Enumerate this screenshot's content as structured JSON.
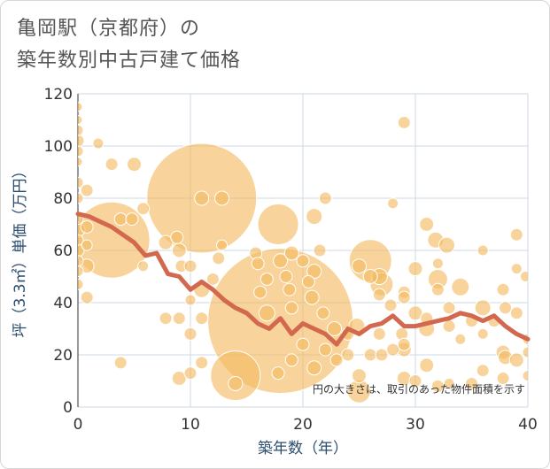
{
  "title_line1": "亀岡駅（京都府）の",
  "title_line2": "築年数別中古戸建て価格",
  "chart_data": {
    "type": "scatter",
    "title": "亀岡駅（京都府）の築年数別中古戸建て価格",
    "xlabel": "築年数（年）",
    "ylabel": "坪（3.3㎡）単価（万円）",
    "xlim": [
      0,
      40
    ],
    "ylim": [
      0,
      120
    ],
    "xticks": [
      0,
      10,
      20,
      30,
      40
    ],
    "yticks": [
      0,
      20,
      40,
      60,
      80,
      100,
      120
    ],
    "grid": true,
    "note": "円の大きさは、取引のあった物件面積を示す",
    "bubble_color": "#f3b95f",
    "line_color": "#d2694f",
    "bubbles": [
      {
        "x": 0,
        "y": 115,
        "s": 5
      },
      {
        "x": 0,
        "y": 110,
        "s": 5
      },
      {
        "x": 0,
        "y": 106,
        "s": 6
      },
      {
        "x": 0,
        "y": 102,
        "s": 7
      },
      {
        "x": 0,
        "y": 98,
        "s": 6
      },
      {
        "x": 0,
        "y": 94,
        "s": 5
      },
      {
        "x": 0,
        "y": 86,
        "s": 6
      },
      {
        "x": 0,
        "y": 80,
        "s": 6
      },
      {
        "x": 0,
        "y": 72,
        "s": 6
      },
      {
        "x": 0,
        "y": 68,
        "s": 8
      },
      {
        "x": 0,
        "y": 64,
        "s": 6
      },
      {
        "x": 0,
        "y": 60,
        "s": 7
      },
      {
        "x": 0,
        "y": 56,
        "s": 6
      },
      {
        "x": 0,
        "y": 52,
        "s": 6
      },
      {
        "x": 0,
        "y": 47,
        "s": 6
      },
      {
        "x": 0.8,
        "y": 83,
        "s": 7
      },
      {
        "x": 0.8,
        "y": 69,
        "s": 7
      },
      {
        "x": 0.8,
        "y": 62,
        "s": 6
      },
      {
        "x": 0.8,
        "y": 54,
        "s": 8
      },
      {
        "x": 0.8,
        "y": 42,
        "s": 7
      },
      {
        "x": 1.8,
        "y": 101,
        "s": 6
      },
      {
        "x": 3,
        "y": 93,
        "s": 7
      },
      {
        "x": 3,
        "y": 64,
        "s": 43
      },
      {
        "x": 3.8,
        "y": 72,
        "s": 7
      },
      {
        "x": 5,
        "y": 93,
        "s": 8
      },
      {
        "x": 4.8,
        "y": 72,
        "s": 7
      },
      {
        "x": 5.8,
        "y": 76,
        "s": 7
      },
      {
        "x": 5.8,
        "y": 54,
        "s": 6
      },
      {
        "x": 3.8,
        "y": 17,
        "s": 7
      },
      {
        "x": 7.8,
        "y": 63,
        "s": 8
      },
      {
        "x": 8.8,
        "y": 65,
        "s": 7
      },
      {
        "x": 9,
        "y": 60,
        "s": 8
      },
      {
        "x": 9.2,
        "y": 54,
        "s": 7
      },
      {
        "x": 10,
        "y": 54,
        "s": 7
      },
      {
        "x": 10,
        "y": 41,
        "s": 6
      },
      {
        "x": 7.8,
        "y": 34,
        "s": 7
      },
      {
        "x": 9,
        "y": 34,
        "s": 7
      },
      {
        "x": 10,
        "y": 28,
        "s": 7
      },
      {
        "x": 11,
        "y": 80,
        "s": 62
      },
      {
        "x": 11,
        "y": 80,
        "s": 8
      },
      {
        "x": 12.8,
        "y": 80,
        "s": 8
      },
      {
        "x": 12.8,
        "y": 62,
        "s": 6
      },
      {
        "x": 12.5,
        "y": 57,
        "s": 7
      },
      {
        "x": 11,
        "y": 45,
        "s": 9
      },
      {
        "x": 11,
        "y": 34,
        "s": 7
      },
      {
        "x": 9,
        "y": 11,
        "s": 8
      },
      {
        "x": 10,
        "y": 13,
        "s": 7
      },
      {
        "x": 11,
        "y": 17,
        "s": 7
      },
      {
        "x": 12,
        "y": 49,
        "s": 7
      },
      {
        "x": 14,
        "y": 12,
        "s": 28
      },
      {
        "x": 14,
        "y": 9,
        "s": 8
      },
      {
        "x": 15.8,
        "y": 59,
        "s": 7
      },
      {
        "x": 16,
        "y": 55,
        "s": 7
      },
      {
        "x": 16.8,
        "y": 49,
        "s": 7
      },
      {
        "x": 16.2,
        "y": 44,
        "s": 7
      },
      {
        "x": 16.8,
        "y": 36,
        "s": 9
      },
      {
        "x": 17.8,
        "y": 70,
        "s": 23
      },
      {
        "x": 18,
        "y": 56,
        "s": 8
      },
      {
        "x": 18.5,
        "y": 50,
        "s": 7
      },
      {
        "x": 18.8,
        "y": 45,
        "s": 7
      },
      {
        "x": 19,
        "y": 38,
        "s": 7
      },
      {
        "x": 18,
        "y": 33,
        "s": 82
      },
      {
        "x": 19,
        "y": 59,
        "s": 8
      },
      {
        "x": 20,
        "y": 56,
        "s": 7
      },
      {
        "x": 21,
        "y": 52,
        "s": 8
      },
      {
        "x": 20.5,
        "y": 48,
        "s": 7
      },
      {
        "x": 20.8,
        "y": 42,
        "s": 8
      },
      {
        "x": 21,
        "y": 73,
        "s": 9
      },
      {
        "x": 22,
        "y": 80,
        "s": 7
      },
      {
        "x": 21.5,
        "y": 60,
        "s": 7
      },
      {
        "x": 21.8,
        "y": 36,
        "s": 7
      },
      {
        "x": 22.8,
        "y": 30,
        "s": 8
      },
      {
        "x": 22,
        "y": 22,
        "s": 7
      },
      {
        "x": 21,
        "y": 15,
        "s": 8
      },
      {
        "x": 19,
        "y": 18,
        "s": 7
      },
      {
        "x": 17.8,
        "y": 13,
        "s": 7
      },
      {
        "x": 20,
        "y": 24,
        "s": 7
      },
      {
        "x": 23,
        "y": 18,
        "s": 7
      },
      {
        "x": 24,
        "y": 28,
        "s": 7
      },
      {
        "x": 24.8,
        "y": 31,
        "s": 9
      },
      {
        "x": 24,
        "y": 20,
        "s": 7
      },
      {
        "x": 25,
        "y": 12,
        "s": 8
      },
      {
        "x": 25,
        "y": 6,
        "s": 13
      },
      {
        "x": 26,
        "y": 56,
        "s": 24
      },
      {
        "x": 25,
        "y": 54,
        "s": 8
      },
      {
        "x": 26,
        "y": 50,
        "s": 8
      },
      {
        "x": 26.8,
        "y": 50,
        "s": 9
      },
      {
        "x": 27,
        "y": 47,
        "s": 13
      },
      {
        "x": 26.8,
        "y": 43,
        "s": 7
      },
      {
        "x": 27.8,
        "y": 39,
        "s": 7
      },
      {
        "x": 26.8,
        "y": 28,
        "s": 7
      },
      {
        "x": 26,
        "y": 20,
        "s": 7
      },
      {
        "x": 27,
        "y": 20,
        "s": 7
      },
      {
        "x": 28,
        "y": 22,
        "s": 7
      },
      {
        "x": 28.8,
        "y": 28,
        "s": 7
      },
      {
        "x": 29,
        "y": 24,
        "s": 7
      },
      {
        "x": 29,
        "y": 22,
        "s": 8
      },
      {
        "x": 29,
        "y": 109,
        "s": 7
      },
      {
        "x": 28,
        "y": 78,
        "s": 6
      },
      {
        "x": 29,
        "y": 44,
        "s": 7
      },
      {
        "x": 30,
        "y": 53,
        "s": 8
      },
      {
        "x": 29,
        "y": 42,
        "s": 7
      },
      {
        "x": 30,
        "y": 36,
        "s": 8
      },
      {
        "x": 29,
        "y": 11,
        "s": 8
      },
      {
        "x": 30,
        "y": 10,
        "s": 7
      },
      {
        "x": 31,
        "y": 70,
        "s": 8
      },
      {
        "x": 31.8,
        "y": 64,
        "s": 9
      },
      {
        "x": 32.8,
        "y": 62,
        "s": 9
      },
      {
        "x": 32,
        "y": 55,
        "s": 6
      },
      {
        "x": 32,
        "y": 49,
        "s": 11
      },
      {
        "x": 32,
        "y": 45,
        "s": 7
      },
      {
        "x": 31,
        "y": 34,
        "s": 7
      },
      {
        "x": 31,
        "y": 30,
        "s": 9
      },
      {
        "x": 31,
        "y": 16,
        "s": 8
      },
      {
        "x": 32,
        "y": 8,
        "s": 7
      },
      {
        "x": 33,
        "y": 38,
        "s": 7
      },
      {
        "x": 33,
        "y": 31,
        "s": 7
      },
      {
        "x": 34,
        "y": 46,
        "s": 10
      },
      {
        "x": 34,
        "y": 26,
        "s": 6
      },
      {
        "x": 33,
        "y": 9,
        "s": 6
      },
      {
        "x": 35,
        "y": 33,
        "s": 7
      },
      {
        "x": 35,
        "y": 9,
        "s": 7
      },
      {
        "x": 36,
        "y": 60,
        "s": 6
      },
      {
        "x": 36,
        "y": 38,
        "s": 9
      },
      {
        "x": 36,
        "y": 28,
        "s": 6
      },
      {
        "x": 36,
        "y": 14,
        "s": 7
      },
      {
        "x": 37,
        "y": 33,
        "s": 7
      },
      {
        "x": 37.8,
        "y": 45,
        "s": 7
      },
      {
        "x": 38,
        "y": 38,
        "s": 7
      },
      {
        "x": 37.8,
        "y": 21,
        "s": 8
      },
      {
        "x": 38,
        "y": 19,
        "s": 8
      },
      {
        "x": 37.8,
        "y": 11,
        "s": 7
      },
      {
        "x": 39,
        "y": 66,
        "s": 7
      },
      {
        "x": 39,
        "y": 53,
        "s": 6
      },
      {
        "x": 39,
        "y": 36,
        "s": 7
      },
      {
        "x": 39,
        "y": 18,
        "s": 8
      },
      {
        "x": 39.8,
        "y": 50,
        "s": 6
      },
      {
        "x": 40,
        "y": 26,
        "s": 6
      },
      {
        "x": 40,
        "y": 21,
        "s": 6
      },
      {
        "x": 40,
        "y": 12,
        "s": 6
      }
    ],
    "trend_line": [
      {
        "x": 0,
        "y": 74
      },
      {
        "x": 1,
        "y": 73
      },
      {
        "x": 2,
        "y": 71
      },
      {
        "x": 3,
        "y": 69
      },
      {
        "x": 4,
        "y": 66
      },
      {
        "x": 5,
        "y": 63
      },
      {
        "x": 6,
        "y": 58
      },
      {
        "x": 7,
        "y": 59
      },
      {
        "x": 8,
        "y": 51
      },
      {
        "x": 9,
        "y": 50
      },
      {
        "x": 10,
        "y": 45
      },
      {
        "x": 11,
        "y": 48
      },
      {
        "x": 12,
        "y": 45
      },
      {
        "x": 13,
        "y": 41
      },
      {
        "x": 14,
        "y": 38
      },
      {
        "x": 15,
        "y": 36
      },
      {
        "x": 16,
        "y": 32
      },
      {
        "x": 17,
        "y": 30
      },
      {
        "x": 18,
        "y": 34
      },
      {
        "x": 19,
        "y": 28
      },
      {
        "x": 20,
        "y": 32
      },
      {
        "x": 21,
        "y": 30
      },
      {
        "x": 22,
        "y": 28
      },
      {
        "x": 23,
        "y": 24
      },
      {
        "x": 24,
        "y": 30
      },
      {
        "x": 25,
        "y": 28
      },
      {
        "x": 26,
        "y": 31
      },
      {
        "x": 27,
        "y": 32
      },
      {
        "x": 28,
        "y": 35
      },
      {
        "x": 29,
        "y": 31
      },
      {
        "x": 30,
        "y": 31
      },
      {
        "x": 31,
        "y": 32
      },
      {
        "x": 32,
        "y": 33
      },
      {
        "x": 33,
        "y": 34
      },
      {
        "x": 34,
        "y": 36
      },
      {
        "x": 35,
        "y": 35
      },
      {
        "x": 36,
        "y": 33
      },
      {
        "x": 37,
        "y": 35
      },
      {
        "x": 38,
        "y": 31
      },
      {
        "x": 39,
        "y": 28
      },
      {
        "x": 40,
        "y": 26
      }
    ]
  }
}
